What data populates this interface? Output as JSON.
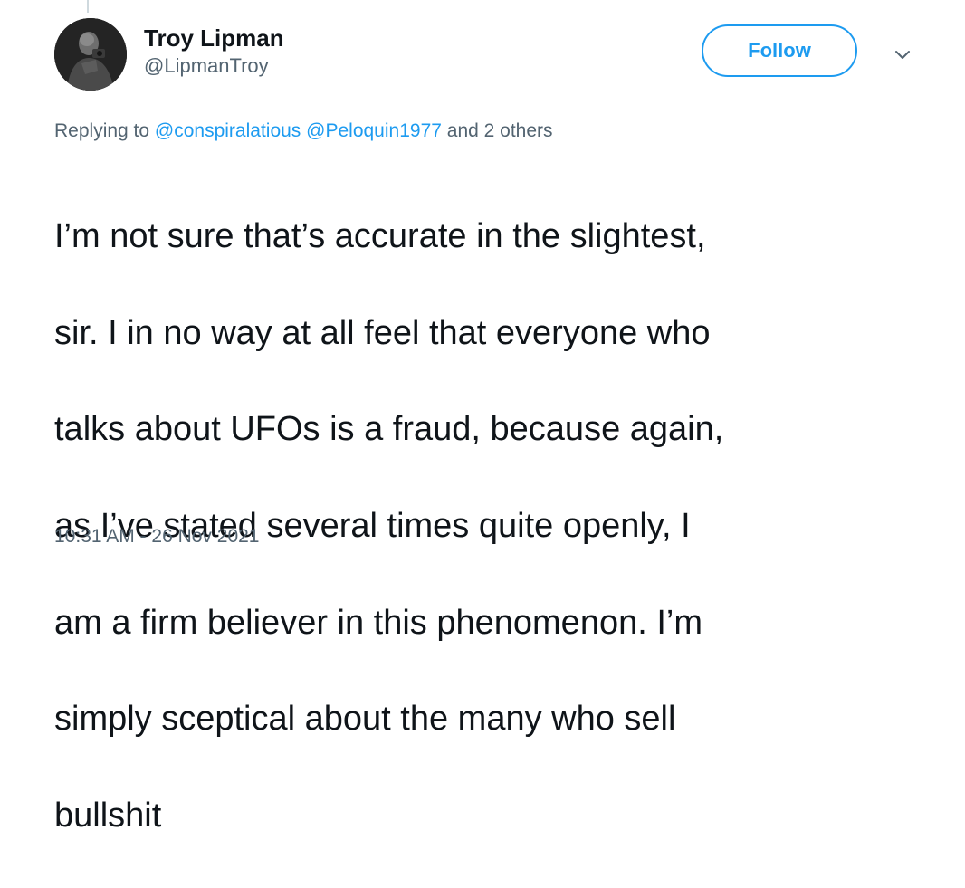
{
  "author": {
    "display_name": "Troy Lipman",
    "handle": "@LipmanTroy"
  },
  "follow_button": {
    "label": "Follow"
  },
  "more_menu": {
    "icon": "chevron-down-icon"
  },
  "reply_context": {
    "prefix": "Replying to",
    "mention_1": "@conspiralatious",
    "mention_2": "@Peloquin1977",
    "suffix": "and 2 others"
  },
  "tweet": {
    "lines": [
      "I’m not sure that’s accurate in the slightest,",
      "sir. I in no way at all feel that everyone who",
      "talks about UFOs is a fraud, because again,",
      "as I’ve stated several times quite openly, I",
      "am a firm believer in this phenomenon. I’m",
      "simply sceptical about the many who sell",
      "bullshit"
    ],
    "timestamp": "10:31 AM - 26 Nov 2021"
  },
  "colors": {
    "accent": "#1d9bf0",
    "secondary_text": "#536471",
    "primary_text": "#0f1419"
  }
}
